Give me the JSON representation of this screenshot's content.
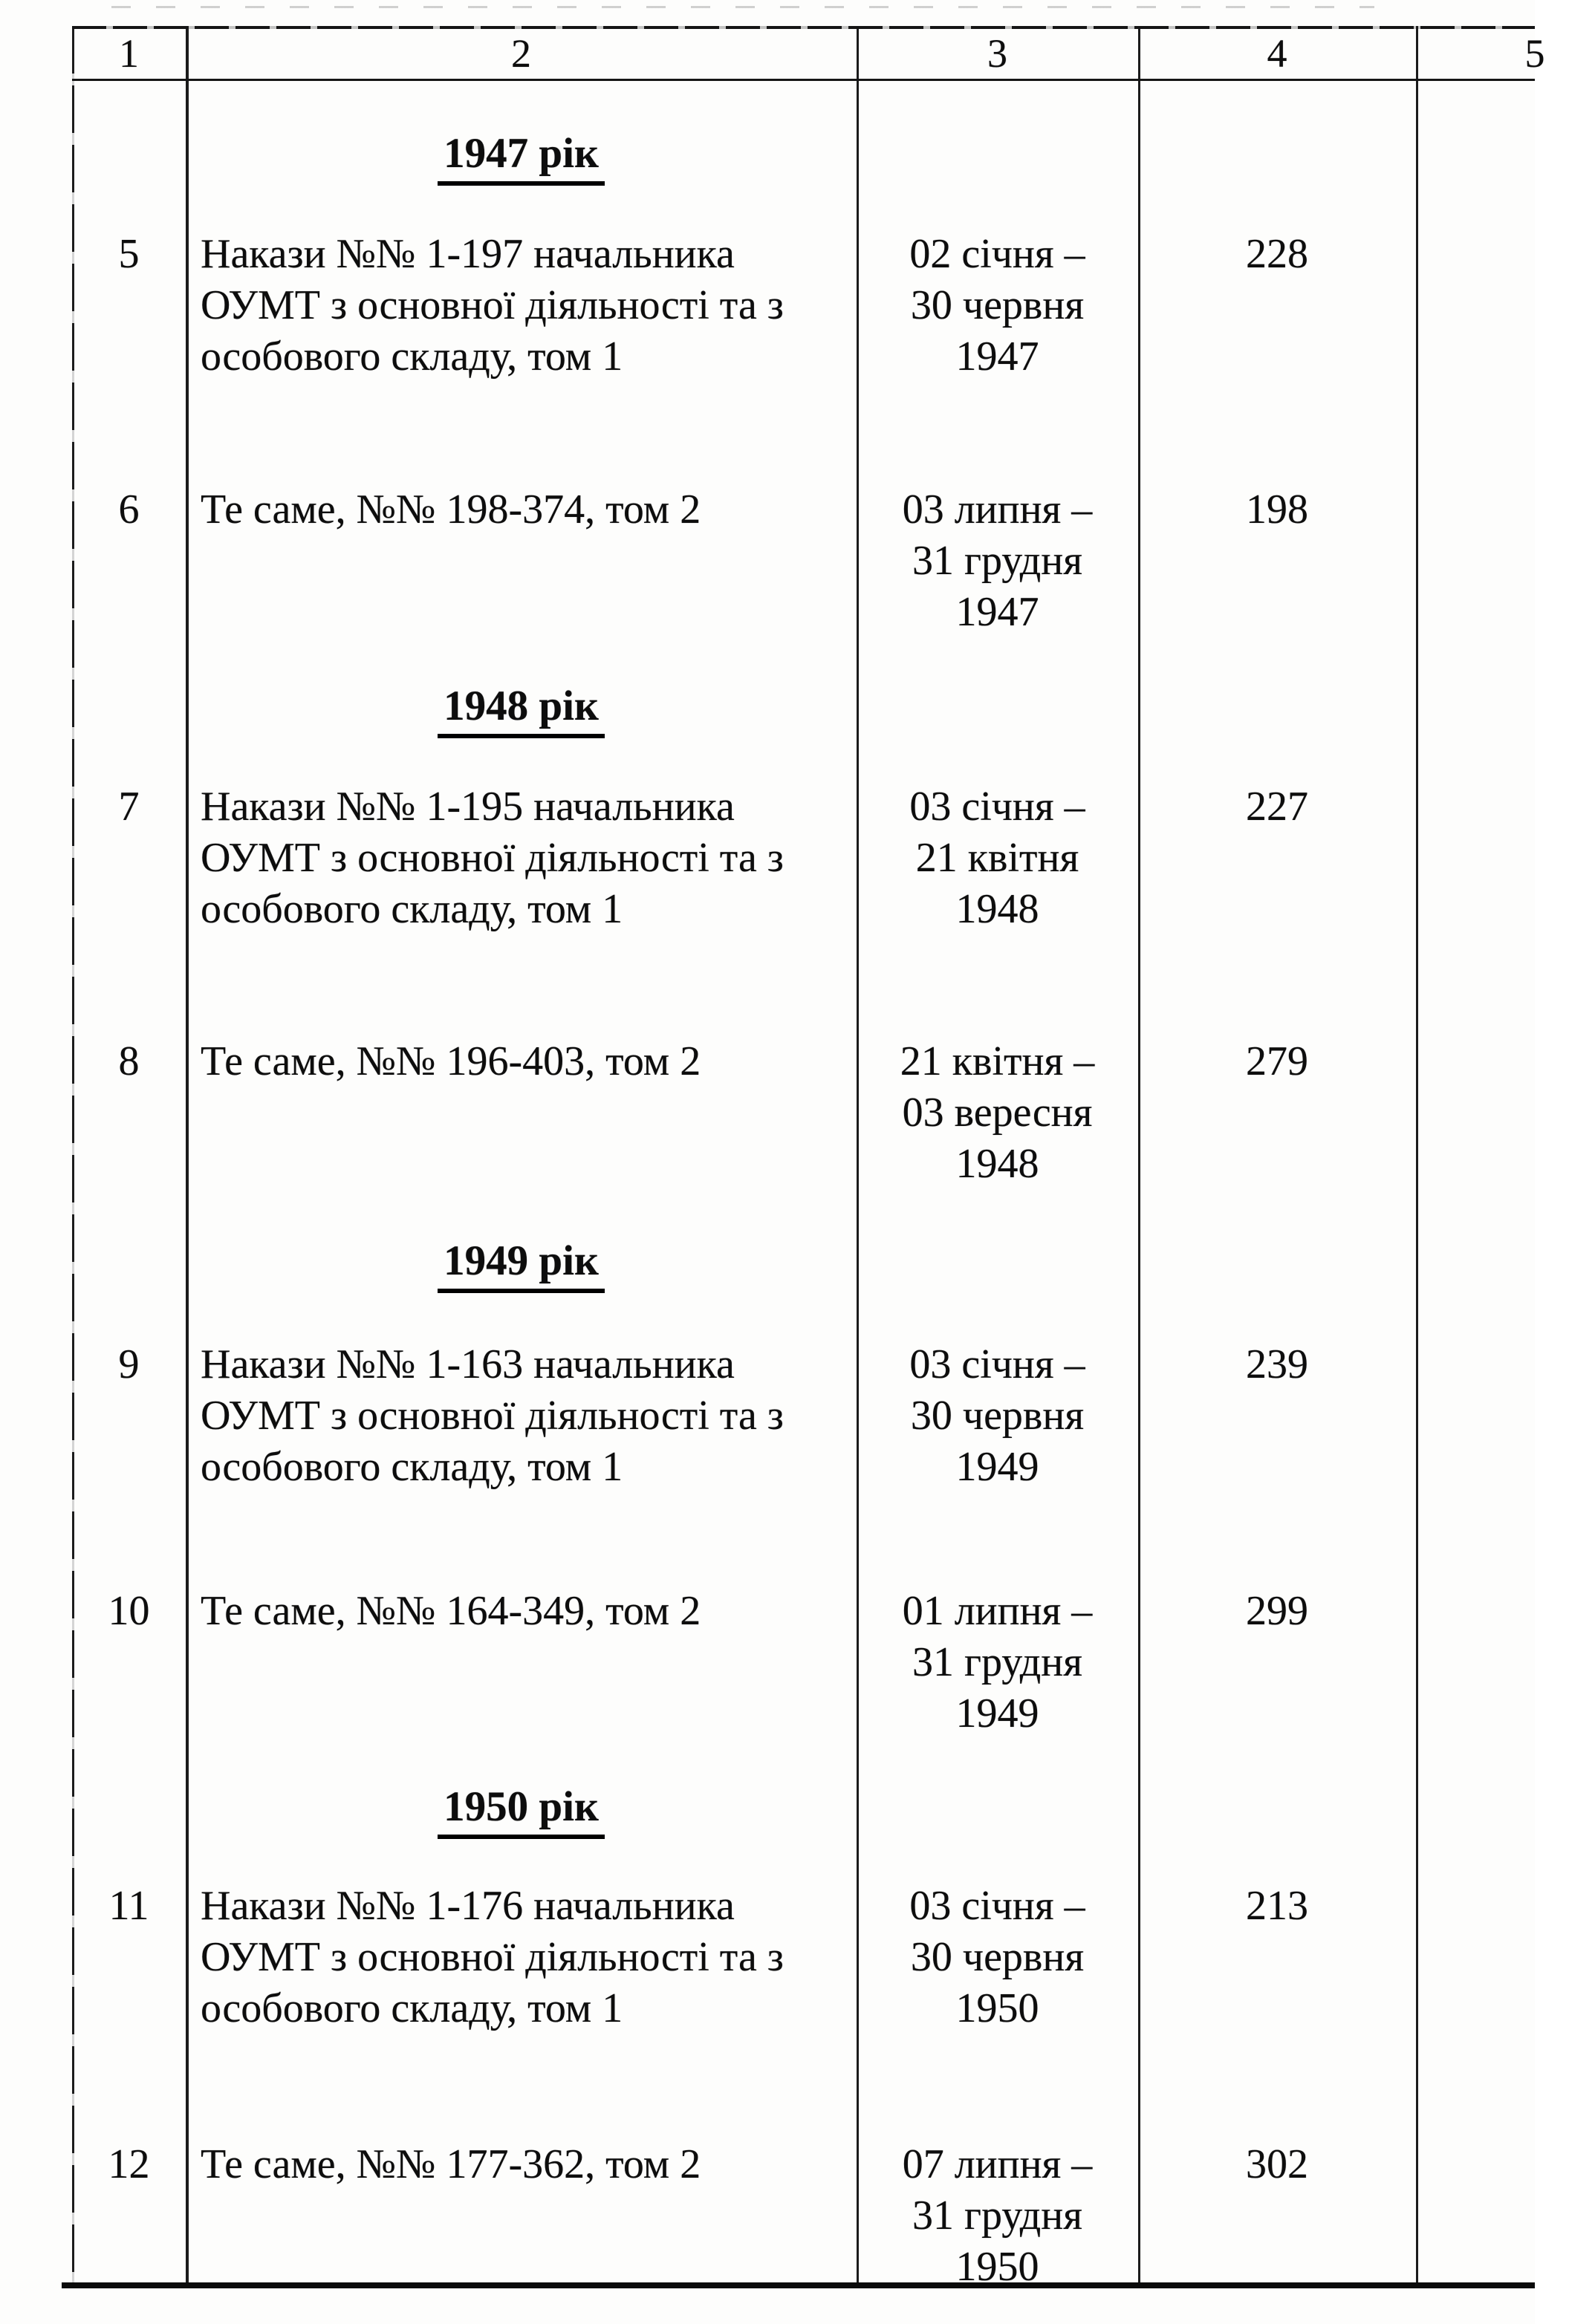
{
  "table": {
    "headers": [
      "1",
      "2",
      "3",
      "4",
      "5"
    ],
    "sections": [
      {
        "year": "1947 рік",
        "rows": [
          {
            "num": "5",
            "title": "Накази №№ 1-197 начальника\nОУМТ з основної діяльності та з\nособового складу, том 1",
            "dates": "02 січня –\n30 червня\n1947",
            "pages": "228"
          },
          {
            "num": "6",
            "title": "Те саме, №№ 198-374, том 2",
            "dates": "03 липня –\n31 грудня\n1947",
            "pages": "198"
          }
        ]
      },
      {
        "year": "1948 рік",
        "rows": [
          {
            "num": "7",
            "title": "Накази №№ 1-195 начальника\nОУМТ з основної діяльності та з\nособового складу, том 1",
            "dates": "03 січня –\n21 квітня\n1948",
            "pages": "227"
          },
          {
            "num": "8",
            "title": "Те саме, №№ 196-403, том 2",
            "dates": "21 квітня –\n03 вересня\n1948",
            "pages": "279"
          }
        ]
      },
      {
        "year": "1949 рік",
        "rows": [
          {
            "num": "9",
            "title": "Накази №№ 1-163 начальника\nОУМТ з основної діяльності та з\nособового складу, том 1",
            "dates": "03 січня –\n30 червня\n1949",
            "pages": "239"
          },
          {
            "num": "10",
            "title": "Те саме, №№ 164-349, том 2",
            "dates": "01 липня –\n31 грудня\n1949",
            "pages": "299"
          }
        ]
      },
      {
        "year": "1950 рік",
        "rows": [
          {
            "num": "11",
            "title": "Накази №№ 1-176 начальника\nОУМТ з основної діяльності та з\nособового складу, том 1",
            "dates": "03 січня –\n30 червня\n1950",
            "pages": "213"
          },
          {
            "num": "12",
            "title": "Те саме, №№ 177-362, том 2",
            "dates": "07 липня –\n31 грудня\n1950",
            "pages": "302"
          }
        ]
      }
    ]
  }
}
